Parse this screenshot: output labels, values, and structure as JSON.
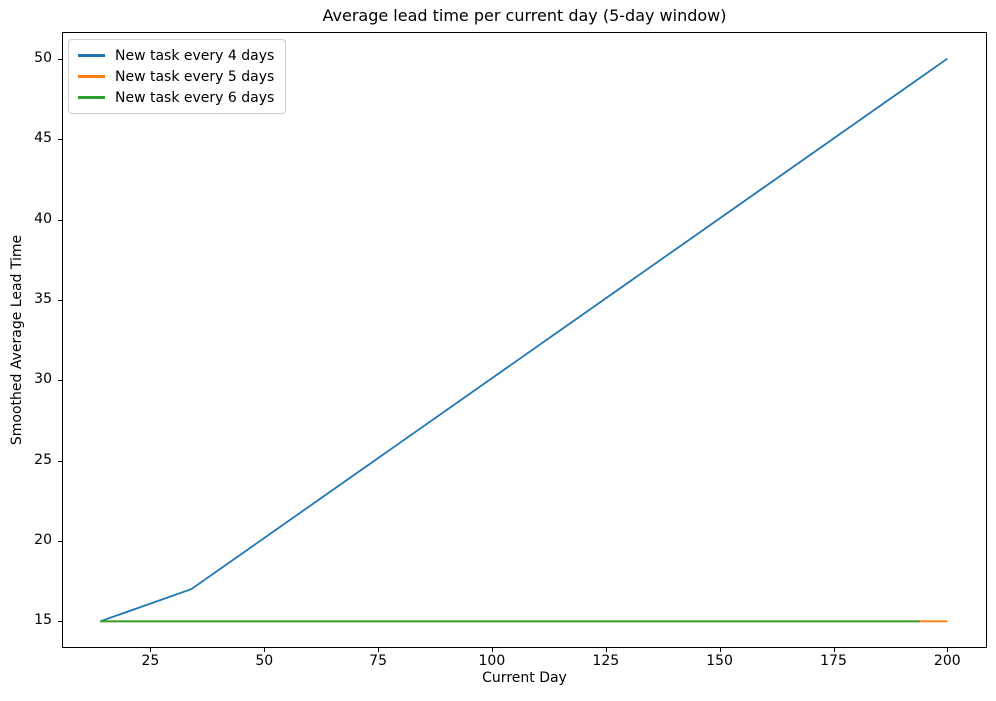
{
  "figure": {
    "background": "#ffffff",
    "spine_color": "#000000",
    "tick_color": "#000000",
    "text_color": "#000000"
  },
  "chart_data": {
    "type": "line",
    "title": "Average lead time per current day (5-day window)",
    "xlabel": "Current Day",
    "ylabel": "Smoothed Average Lead Time",
    "xlim": [
      5.8,
      208.5
    ],
    "ylim": [
      13.4,
      51.6
    ],
    "x_ticks": [
      25,
      50,
      75,
      100,
      125,
      150,
      175,
      200
    ],
    "y_ticks": [
      15,
      20,
      25,
      30,
      35,
      40,
      45,
      50
    ],
    "grid": false,
    "legend_position": "upper-left",
    "line_width": 1.8,
    "series": [
      {
        "name": "New task every 4 days",
        "color": "#1f77b4",
        "points": [
          [
            14,
            15
          ],
          [
            34,
            17
          ],
          [
            200,
            50
          ]
        ]
      },
      {
        "name": "New task every 5 days",
        "color": "#ff7f0e",
        "points": [
          [
            14,
            15
          ],
          [
            200,
            15
          ]
        ]
      },
      {
        "name": "New task every 6 days",
        "color": "#2ca02c",
        "points": [
          [
            14,
            15
          ],
          [
            194,
            15
          ]
        ]
      }
    ]
  }
}
